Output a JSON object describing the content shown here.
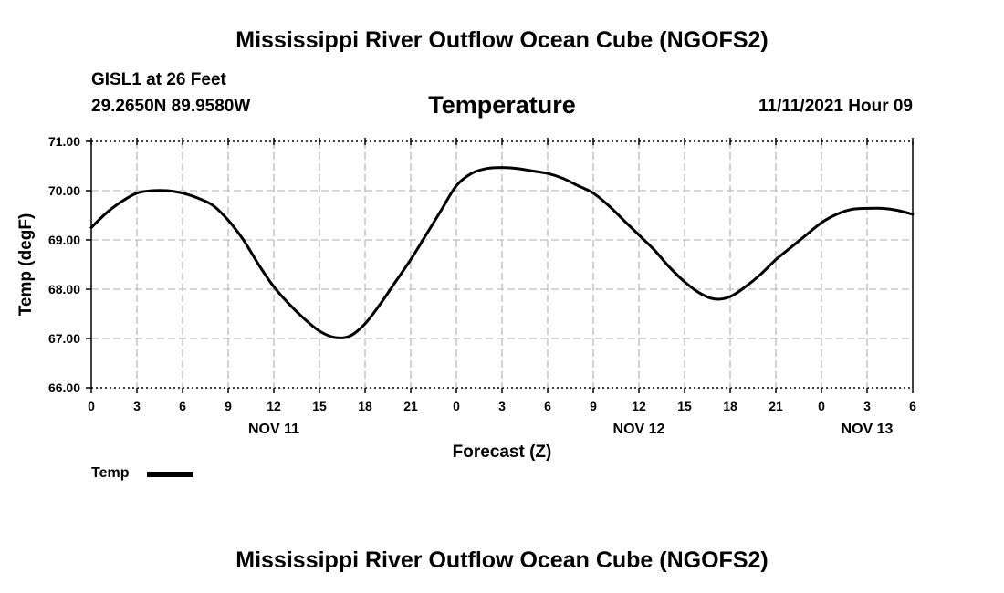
{
  "header": {
    "title": "Mississippi River Outflow Ocean Cube (NGOFS2)",
    "station": "GISL1 at 26 Feet",
    "coords": "29.2650N  89.9580W",
    "chart_title": "Temperature",
    "datetime": "11/11/2021 Hour 09"
  },
  "footer": {
    "title": "Mississippi River Outflow Ocean Cube (NGOFS2)"
  },
  "legend": {
    "label": "Temp"
  },
  "chart_data": {
    "type": "line",
    "title": "Temperature",
    "xlabel": "Forecast (Z)",
    "ylabel": "Temp (degF)",
    "ylim": [
      66.0,
      71.0
    ],
    "xlim": [
      0,
      54
    ],
    "grid": true,
    "legend": "bottom-left",
    "y_ticks": [
      66.0,
      67.0,
      68.0,
      69.0,
      70.0,
      71.0
    ],
    "y_tick_labels": [
      "66.00",
      "67.00",
      "68.00",
      "69.00",
      "70.00",
      "71.00"
    ],
    "x_ticks": [
      0,
      3,
      6,
      9,
      12,
      15,
      18,
      21,
      24,
      27,
      30,
      33,
      36,
      39,
      42,
      45,
      48,
      51,
      54
    ],
    "x_tick_labels": [
      "0",
      "3",
      "6",
      "9",
      "12",
      "15",
      "18",
      "21",
      "0",
      "3",
      "6",
      "9",
      "12",
      "15",
      "18",
      "21",
      "0",
      "3",
      "6"
    ],
    "day_labels": [
      {
        "x": 12,
        "label": "NOV 11"
      },
      {
        "x": 36,
        "label": "NOV 12"
      },
      {
        "x": 51,
        "label": "NOV 13"
      }
    ],
    "series": [
      {
        "name": "Temp",
        "color": "#000000",
        "x": [
          0,
          1,
          2,
          3,
          4,
          5,
          6,
          7,
          8,
          9,
          10,
          11,
          12,
          13,
          14,
          15,
          16,
          17,
          18,
          19,
          20,
          21,
          22,
          23,
          24,
          25,
          26,
          27,
          28,
          29,
          30,
          31,
          32,
          33,
          34,
          35,
          36,
          37,
          38,
          39,
          40,
          41,
          42,
          43,
          44,
          45,
          46,
          47,
          48,
          49,
          50,
          51,
          52,
          53,
          54
        ],
        "values": [
          69.25,
          69.55,
          69.78,
          69.95,
          70.0,
          70.0,
          69.95,
          69.85,
          69.7,
          69.4,
          69.0,
          68.5,
          68.05,
          67.7,
          67.4,
          67.15,
          67.02,
          67.05,
          67.3,
          67.7,
          68.15,
          68.6,
          69.1,
          69.6,
          70.1,
          70.35,
          70.45,
          70.47,
          70.45,
          70.4,
          70.35,
          70.25,
          70.1,
          69.95,
          69.7,
          69.4,
          69.1,
          68.8,
          68.45,
          68.15,
          67.92,
          67.8,
          67.85,
          68.05,
          68.3,
          68.6,
          68.85,
          69.1,
          69.35,
          69.52,
          69.62,
          69.64,
          69.64,
          69.6,
          69.52
        ]
      }
    ]
  }
}
